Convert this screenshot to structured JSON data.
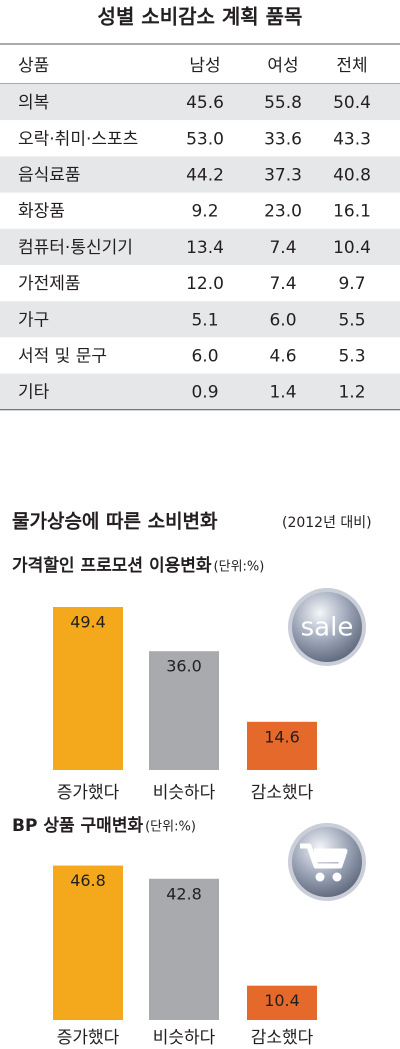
{
  "table": {
    "title": "성별 소비감소 계획 품목",
    "header": [
      "상품",
      "남성",
      "여성",
      "전체"
    ],
    "rows": [
      [
        "의복",
        "45.6",
        "55.8",
        "50.4"
      ],
      [
        "오락·취미·스포츠",
        "53.0",
        "33.6",
        "43.3"
      ],
      [
        "음식료품",
        "44.2",
        "37.3",
        "40.8"
      ],
      [
        "화장품",
        "9.2",
        "23.0",
        "16.1"
      ],
      [
        "컴퓨터·통신기기",
        "13.4",
        "7.4",
        "10.4"
      ],
      [
        "가전제품",
        "12.0",
        "7.4",
        "9.7"
      ],
      [
        "가구",
        "5.1",
        "6.0",
        "5.5"
      ],
      [
        "서적 및 문구",
        "6.0",
        "4.6",
        "5.3"
      ],
      [
        "기타",
        "0.9",
        "1.4",
        "1.2"
      ]
    ]
  },
  "section": {
    "title": "물가상승에 따른 소비변화",
    "subtitle": "(2012년 대비)"
  },
  "chart_data": [
    {
      "type": "bar",
      "title": "가격할인 프로모션 이용변화",
      "unit": "(단위:%)",
      "icon_label": "sale",
      "categories": [
        "증가했다",
        "비슷하다",
        "감소했다"
      ],
      "values": [
        49.4,
        36.0,
        14.6
      ],
      "value_labels": [
        "49.4",
        "36.0",
        "14.6"
      ],
      "colors": [
        "#f4a91d",
        "#a8aaad",
        "#e5692b"
      ]
    },
    {
      "type": "bar",
      "title": "BP 상품 구매변화",
      "unit": "(단위:%)",
      "categories": [
        "증가했다",
        "비슷하다",
        "감소했다"
      ],
      "values": [
        46.8,
        42.8,
        10.4
      ],
      "value_labels": [
        "46.8",
        "42.8",
        "10.4"
      ],
      "colors": [
        "#f4a91d",
        "#a8aaad",
        "#e5692b"
      ]
    }
  ]
}
